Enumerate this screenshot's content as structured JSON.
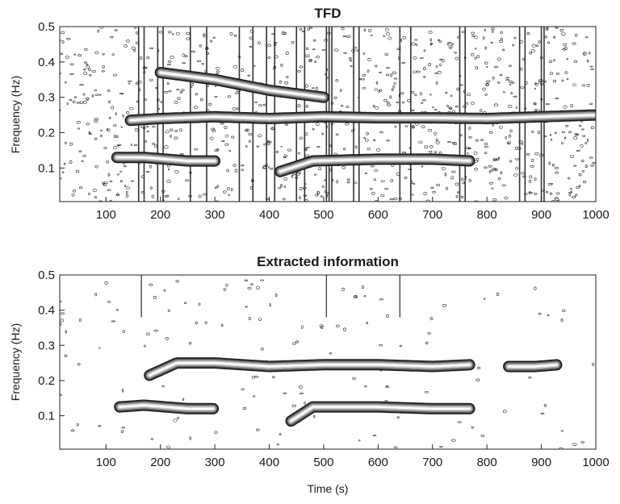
{
  "chart_data": [
    {
      "type": "heatmap",
      "title": "TFD",
      "xlabel": "",
      "ylabel": "Frequency (Hz)",
      "xlim": [
        15,
        1000
      ],
      "ylim": [
        0.005,
        0.5
      ],
      "xticks": [
        100,
        200,
        300,
        400,
        500,
        600,
        700,
        800,
        900,
        1000
      ],
      "yticks": [
        0.1,
        0.2,
        0.3,
        0.4,
        0.5
      ],
      "grid": false,
      "ridges": [
        {
          "t_start": 145,
          "t_end": 1000,
          "f": [
            0.235,
            0.24,
            0.245,
            0.24,
            0.245,
            0.242,
            0.242,
            0.24,
            0.245,
            0.25
          ],
          "t": [
            145,
            200,
            300,
            400,
            500,
            600,
            700,
            800,
            900,
            1000
          ]
        },
        {
          "t_start": 120,
          "t_end": 300,
          "f": [
            0.13,
            0.13,
            0.12,
            0.12
          ],
          "t": [
            120,
            170,
            250,
            300
          ]
        },
        {
          "t_start": 420,
          "t_end": 770,
          "f": [
            0.09,
            0.12,
            0.125,
            0.125,
            0.12
          ],
          "t": [
            420,
            480,
            600,
            700,
            770
          ]
        },
        {
          "t_start": 200,
          "t_end": 500,
          "f": [
            0.37,
            0.35,
            0.32,
            0.3
          ],
          "t": [
            200,
            300,
            400,
            500
          ]
        }
      ],
      "vertical_streaks_t": [
        160,
        170,
        195,
        205,
        255,
        285,
        345,
        370,
        395,
        410,
        450,
        465,
        505,
        510,
        515,
        555,
        565,
        640,
        660,
        750,
        760,
        860,
        870,
        900,
        905
      ]
    },
    {
      "type": "heatmap",
      "title": "Extracted information",
      "xlabel": "Time (s)",
      "ylabel": "Frequency (Hz)",
      "xlim": [
        15,
        1000
      ],
      "ylim": [
        0.005,
        0.5
      ],
      "xticks": [
        100,
        200,
        300,
        400,
        500,
        600,
        700,
        800,
        900,
        1000
      ],
      "yticks": [
        0.1,
        0.2,
        0.3,
        0.4,
        0.5
      ],
      "grid": false,
      "ridges": [
        {
          "t_start": 180,
          "t_end": 770,
          "f": [
            0.215,
            0.25,
            0.25,
            0.24,
            0.245,
            0.245,
            0.24,
            0.245
          ],
          "t": [
            180,
            230,
            300,
            400,
            500,
            600,
            700,
            770
          ]
        },
        {
          "t_start": 840,
          "t_end": 930,
          "f": [
            0.24,
            0.24,
            0.245
          ],
          "t": [
            840,
            890,
            930
          ]
        },
        {
          "t_start": 125,
          "t_end": 300,
          "f": [
            0.125,
            0.13,
            0.12,
            0.12
          ],
          "t": [
            125,
            170,
            250,
            300
          ]
        },
        {
          "t_start": 440,
          "t_end": 770,
          "f": [
            0.085,
            0.125,
            0.125,
            0.12,
            0.12
          ],
          "t": [
            440,
            480,
            600,
            700,
            770
          ]
        }
      ],
      "vertical_streaks_t": [
        165,
        505,
        640
      ]
    }
  ]
}
